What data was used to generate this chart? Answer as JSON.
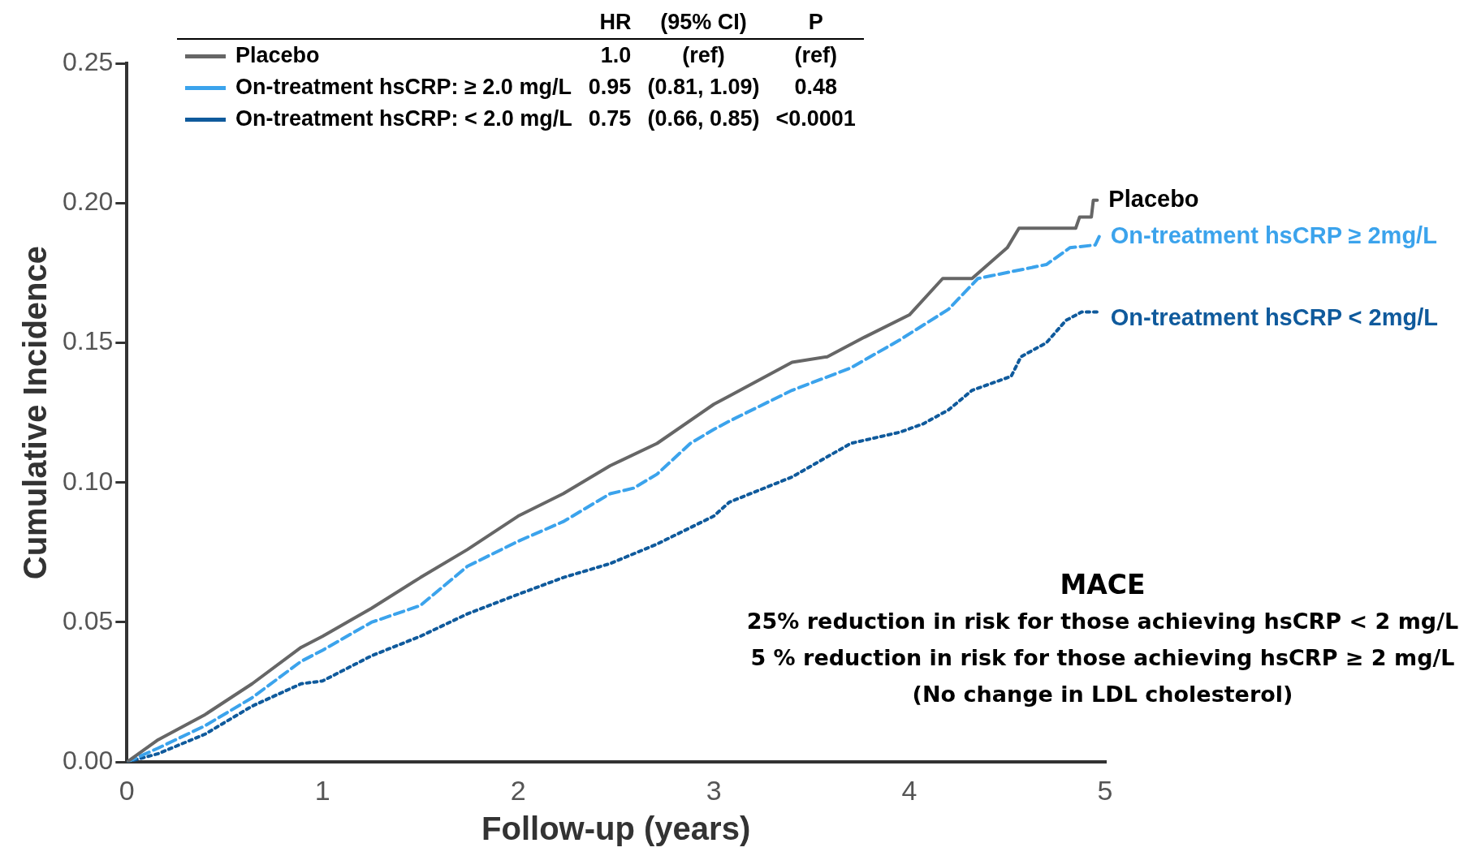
{
  "chart_data": {
    "type": "line",
    "xlabel": "Follow-up (years)",
    "ylabel": "Cumulative Incidence",
    "xlim": [
      0,
      5
    ],
    "ylim": [
      0,
      0.25
    ],
    "xticks": [
      0,
      1,
      2,
      3,
      4,
      5
    ],
    "yticks": [
      {
        "value": 0,
        "label": "0.00"
      },
      {
        "value": 0.05,
        "label": "0.05"
      },
      {
        "value": 0.1,
        "label": "0.10"
      },
      {
        "value": 0.15,
        "label": "0.15"
      },
      {
        "value": 0.2,
        "label": "0.20"
      },
      {
        "value": 0.25,
        "label": "0.25"
      }
    ],
    "grid": false,
    "legend": "top left",
    "marker": "none",
    "series": [
      {
        "name": "Placebo",
        "color": "#666666",
        "line_style": "solid",
        "x": [
          0,
          0.16,
          0.4,
          0.64,
          0.89,
          1.0,
          1.25,
          1.5,
          1.74,
          2.0,
          2.23,
          2.47,
          2.71,
          3.0,
          3.08,
          3.4,
          3.58,
          3.77,
          4.0,
          4.17,
          4.32,
          4.5,
          4.56,
          4.85,
          4.87,
          4.93,
          4.94,
          4.96
        ],
        "values": [
          0,
          0.008,
          0.017,
          0.028,
          0.041,
          0.045,
          0.055,
          0.066,
          0.076,
          0.088,
          0.096,
          0.106,
          0.114,
          0.128,
          0.131,
          0.143,
          0.145,
          0.152,
          0.16,
          0.173,
          0.173,
          0.184,
          0.191,
          0.191,
          0.195,
          0.195,
          0.201,
          0.201
        ]
      },
      {
        "name": "On-treatment hsCRP: ≥ 2.0 mg/L",
        "color": "#3ba3ec",
        "line_style": "dashed",
        "x": [
          0,
          0.16,
          0.4,
          0.64,
          0.89,
          1.0,
          1.25,
          1.5,
          1.74,
          2.0,
          2.23,
          2.47,
          2.59,
          2.71,
          2.88,
          3.0,
          3.08,
          3.4,
          3.7,
          3.95,
          4.2,
          4.35,
          4.42,
          4.7,
          4.82,
          4.95,
          4.97
        ],
        "values": [
          0,
          0.005,
          0.013,
          0.023,
          0.036,
          0.04,
          0.05,
          0.056,
          0.07,
          0.079,
          0.086,
          0.096,
          0.098,
          0.103,
          0.114,
          0.119,
          0.122,
          0.133,
          0.141,
          0.151,
          0.162,
          0.173,
          0.174,
          0.178,
          0.184,
          0.185,
          0.188
        ]
      },
      {
        "name": "On-treatment hsCRP: < 2.0 mg/L",
        "color": "#0f5a9c",
        "line_style": "dotted",
        "x": [
          0,
          0.16,
          0.4,
          0.64,
          0.89,
          1.0,
          1.25,
          1.5,
          1.74,
          2.0,
          2.23,
          2.47,
          2.71,
          3.0,
          3.08,
          3.4,
          3.7,
          3.95,
          4.07,
          4.2,
          4.32,
          4.52,
          4.57,
          4.7,
          4.8,
          4.88,
          4.97
        ],
        "values": [
          0,
          0.003,
          0.01,
          0.02,
          0.028,
          0.029,
          0.038,
          0.045,
          0.053,
          0.06,
          0.066,
          0.071,
          0.078,
          0.088,
          0.093,
          0.102,
          0.114,
          0.118,
          0.121,
          0.126,
          0.133,
          0.138,
          0.145,
          0.15,
          0.158,
          0.161,
          0.161
        ]
      }
    ],
    "annotations": [
      "HR",
      "(95% CI)",
      "P",
      "1.0",
      "(ref)",
      "(ref)",
      "0.95",
      "(0.81, 1.09)",
      "0.48",
      "0.75",
      "(0.66, 0.85)",
      "<0.0001",
      "Placebo",
      "On-treatment hsCRP ≥ 2mg/L",
      "On-treatment hsCRP < 2mg/L",
      "MACE",
      "25% reduction in risk for those achieving hsCRP < 2 mg/L",
      "5 % reduction in risk for those achieving hsCRP ≥ 2 mg/L",
      "(No change in LDL cholesterol)"
    ]
  }
}
